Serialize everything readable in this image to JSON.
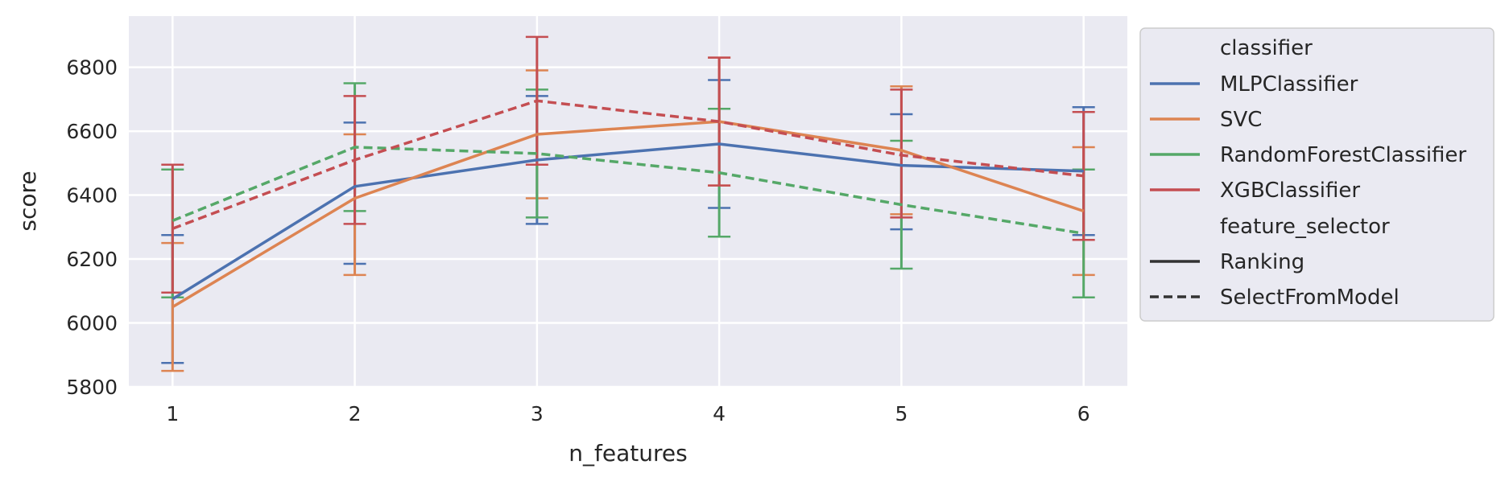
{
  "chart_data": {
    "type": "line",
    "title": "",
    "xlabel": "n_features",
    "ylabel": "score",
    "x": [
      1,
      2,
      3,
      4,
      5,
      6
    ],
    "xlim": [
      0.76,
      6.24
    ],
    "ylim": [
      5800,
      6960
    ],
    "yticks": [
      5800,
      6000,
      6200,
      6400,
      6600,
      6800
    ],
    "grid": true,
    "legend": {
      "placement": "outside-right-top",
      "hue_title": "classifier",
      "style_title": "feature_selector",
      "style_entries": [
        {
          "label": "Ranking",
          "dash": "solid"
        },
        {
          "label": "SelectFromModel",
          "dash": "dashed"
        }
      ]
    },
    "classifiers": [
      {
        "name": "MLPClassifier",
        "color": "#4c72b0"
      },
      {
        "name": "SVC",
        "color": "#dd8452"
      },
      {
        "name": "RandomForestClassifier",
        "color": "#55a868"
      },
      {
        "name": "XGBClassifier",
        "color": "#c44e52"
      }
    ],
    "series": [
      {
        "classifier": "MLPClassifier",
        "feature_selector": "Ranking",
        "color": "#4c72b0",
        "dash": "solid",
        "values": [
          6075,
          6427,
          6510,
          6560,
          6493,
          6475
        ],
        "err_low": [
          5875,
          6185,
          6310,
          6360,
          6293,
          6275
        ],
        "err_high": [
          6275,
          6627,
          6710,
          6760,
          6653,
          6675
        ]
      },
      {
        "classifier": "SVC",
        "feature_selector": "Ranking",
        "color": "#dd8452",
        "dash": "solid",
        "values": [
          6050,
          6390,
          6590,
          6630,
          6540,
          6350
        ],
        "err_low": [
          5850,
          6150,
          6390,
          6430,
          6340,
          6150
        ],
        "err_high": [
          6250,
          6590,
          6790,
          6830,
          6740,
          6550
        ]
      },
      {
        "classifier": "RandomForestClassifier",
        "feature_selector": "SelectFromModel",
        "color": "#55a868",
        "dash": "dashed",
        "values": [
          6320,
          6550,
          6530,
          6470,
          6370,
          6280
        ],
        "err_low": [
          6080,
          6350,
          6330,
          6270,
          6170,
          6080
        ],
        "err_high": [
          6480,
          6750,
          6730,
          6670,
          6570,
          6480
        ]
      },
      {
        "classifier": "XGBClassifier",
        "feature_selector": "SelectFromModel",
        "color": "#c44e52",
        "dash": "dashed",
        "values": [
          6295,
          6510,
          6695,
          6630,
          6525,
          6460
        ],
        "err_low": [
          6095,
          6310,
          6495,
          6430,
          6330,
          6260
        ],
        "err_high": [
          6495,
          6710,
          6895,
          6830,
          6730,
          6660
        ]
      }
    ]
  }
}
